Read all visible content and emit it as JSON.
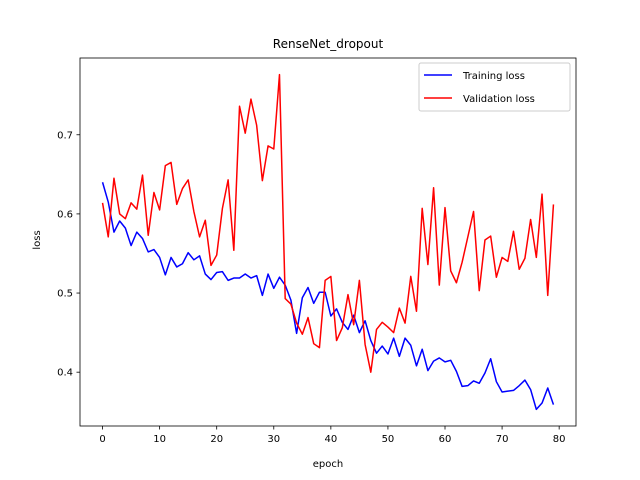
{
  "chart_data": {
    "type": "line",
    "title": "RenseNet_dropout",
    "xlabel": "epoch",
    "ylabel": "loss",
    "xlim": [
      -3.95,
      82.95
    ],
    "ylim": [
      0.332,
      0.797
    ],
    "xticks": [
      0,
      10,
      20,
      30,
      40,
      50,
      60,
      70,
      80
    ],
    "yticks": [
      0.4,
      0.5,
      0.6,
      0.7
    ],
    "ytick_labels": [
      "0.4",
      "0.5",
      "0.6",
      "0.7"
    ],
    "grid": false,
    "legend_position": "top-right",
    "series": [
      {
        "name": "Training loss",
        "color": "#0000ff",
        "values": [
          0.64,
          0.615,
          0.577,
          0.591,
          0.582,
          0.56,
          0.577,
          0.569,
          0.552,
          0.555,
          0.545,
          0.523,
          0.545,
          0.533,
          0.537,
          0.551,
          0.542,
          0.547,
          0.524,
          0.517,
          0.526,
          0.527,
          0.516,
          0.519,
          0.519,
          0.524,
          0.519,
          0.522,
          0.497,
          0.524,
          0.506,
          0.52,
          0.51,
          0.491,
          0.449,
          0.494,
          0.507,
          0.487,
          0.501,
          0.501,
          0.471,
          0.48,
          0.463,
          0.454,
          0.472,
          0.45,
          0.465,
          0.44,
          0.424,
          0.433,
          0.423,
          0.443,
          0.42,
          0.443,
          0.434,
          0.408,
          0.429,
          0.402,
          0.414,
          0.418,
          0.413,
          0.415,
          0.401,
          0.382,
          0.383,
          0.389,
          0.386,
          0.399,
          0.417,
          0.388,
          0.375,
          0.376,
          0.377,
          0.383,
          0.39,
          0.378,
          0.353,
          0.361,
          0.38,
          0.359
        ]
      },
      {
        "name": "Validation loss",
        "color": "#ff0000",
        "values": [
          0.614,
          0.571,
          0.645,
          0.6,
          0.594,
          0.614,
          0.606,
          0.649,
          0.573,
          0.627,
          0.605,
          0.661,
          0.665,
          0.612,
          0.632,
          0.643,
          0.603,
          0.571,
          0.592,
          0.535,
          0.548,
          0.607,
          0.643,
          0.554,
          0.736,
          0.702,
          0.745,
          0.712,
          0.642,
          0.686,
          0.682,
          0.776,
          0.493,
          0.486,
          0.462,
          0.448,
          0.469,
          0.436,
          0.431,
          0.516,
          0.521,
          0.44,
          0.456,
          0.498,
          0.46,
          0.516,
          0.435,
          0.4,
          0.454,
          0.463,
          0.457,
          0.45,
          0.481,
          0.462,
          0.521,
          0.477,
          0.607,
          0.536,
          0.633,
          0.51,
          0.608,
          0.528,
          0.513,
          0.539,
          0.571,
          0.603,
          0.503,
          0.567,
          0.572,
          0.52,
          0.545,
          0.54,
          0.578,
          0.53,
          0.544,
          0.593,
          0.545,
          0.625,
          0.497,
          0.612
        ]
      }
    ]
  }
}
